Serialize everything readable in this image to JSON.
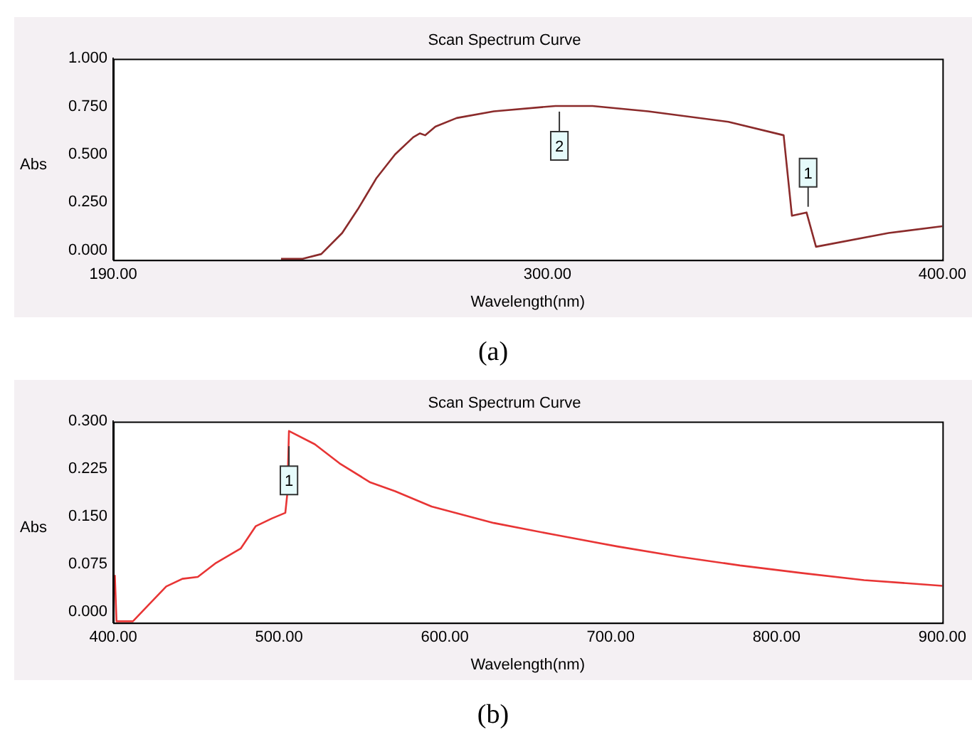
{
  "chart_data": [
    {
      "type": "line",
      "title": "Scan Spectrum Curve",
      "xlabel": "Wavelength(nm)",
      "ylabel": "Abs",
      "xlim": [
        190,
        400
      ],
      "xticks": [
        {
          "value": 190,
          "label": "190.00"
        },
        {
          "value": 300,
          "label": "300.00"
        },
        {
          "value": 400,
          "label": "400.00"
        }
      ],
      "ylim": [
        -0.05,
        1.0
      ],
      "yticks": [
        {
          "value": 0,
          "label": "0.000"
        },
        {
          "value": 0.25,
          "label": "0.250"
        },
        {
          "value": 0.5,
          "label": "0.500"
        },
        {
          "value": 0.75,
          "label": "0.750"
        },
        {
          "value": 1.0,
          "label": "1.000"
        }
      ],
      "grid": false,
      "legend": false,
      "series": [
        {
          "color": "#8b2b2b",
          "x": [
            232.5,
            238,
            242.7,
            248,
            252,
            256.7,
            261.4,
            266,
            267.7,
            269,
            271.6,
            277,
            286.4,
            302,
            311.4,
            325.5,
            345.8,
            359.8,
            361.9,
            365.6,
            368,
            386.4,
            400
          ],
          "values": [
            -0.045,
            -0.045,
            -0.02,
            0.09,
            0.215,
            0.377,
            0.5,
            0.59,
            0.61,
            0.6,
            0.645,
            0.69,
            0.725,
            0.753,
            0.753,
            0.725,
            0.67,
            0.6,
            0.18,
            0.197,
            0.018,
            0.09,
            0.125
          ]
        }
      ],
      "annotations": [
        {
          "text": "2",
          "x": 303,
          "y": 0.753
        },
        {
          "text": "1",
          "x": 366,
          "y": 0.197
        },
        "(a)"
      ]
    },
    {
      "type": "line",
      "title": "Scan Spectrum Curve",
      "xlabel": "Wavelength(nm)",
      "ylabel": "Abs",
      "xlim": [
        400,
        900
      ],
      "xticks": [
        {
          "value": 400,
          "label": "400.00"
        },
        {
          "value": 500,
          "label": "500.00"
        },
        {
          "value": 600,
          "label": "600.00"
        },
        {
          "value": 700,
          "label": "700.00"
        },
        {
          "value": 800,
          "label": "800.00"
        },
        {
          "value": 900,
          "label": "900.00"
        }
      ],
      "ylim": [
        -0.017,
        0.3
      ],
      "yticks": [
        {
          "value": 0,
          "label": "0.000"
        },
        {
          "value": 0.075,
          "label": "0.075"
        },
        {
          "value": 0.15,
          "label": "0.150"
        },
        {
          "value": 0.225,
          "label": "0.225"
        },
        {
          "value": 0.3,
          "label": "0.300"
        }
      ],
      "grid": false,
      "legend": false,
      "series": [
        {
          "color": "#e83535",
          "x": [
            401,
            402,
            411.9,
            421,
            432,
            441.7,
            451,
            462,
            477,
            486,
            495.6,
            503.8,
            505,
            506,
            521.6,
            536.5,
            555,
            570,
            592,
            629.5,
            667,
            704,
            741,
            778,
            815.6,
            852.8,
            900
          ],
          "values": [
            0.058,
            -0.015,
            -0.015,
            0.01,
            0.04,
            0.052,
            0.055,
            0.077,
            0.1,
            0.135,
            0.147,
            0.156,
            0.186,
            0.285,
            0.264,
            0.234,
            0.204,
            0.19,
            0.166,
            0.14,
            0.121,
            0.103,
            0.087,
            0.073,
            0.061,
            0.05,
            0.041
          ]
        }
      ],
      "annotations": [
        {
          "text": "1",
          "x": 506,
          "y": 0.27
        },
        "(b)"
      ]
    }
  ]
}
